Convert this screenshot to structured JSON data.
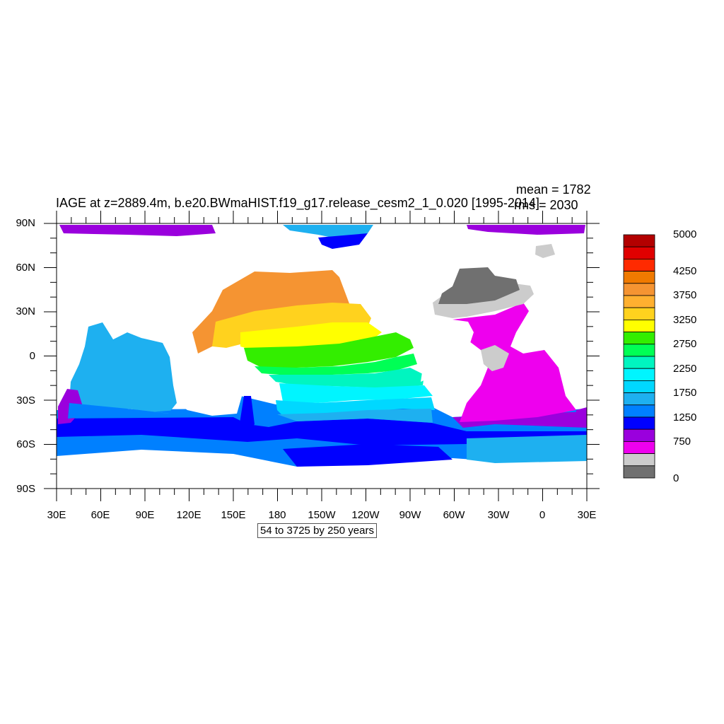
{
  "title": "IAGE at z=2889.4m, b.e20.BWmaHIST.f19_g17.release_cesm2_1_0.020 [1995-2014]",
  "stats": {
    "mean": "mean = 1782",
    "rms": "rms = 2030"
  },
  "lat_ticks": [
    "90N",
    "60N",
    "30N",
    "0",
    "30S",
    "60S",
    "90S"
  ],
  "lon_ticks": [
    "30E",
    "60E",
    "90E",
    "120E",
    "150E",
    "180",
    "150W",
    "120W",
    "90W",
    "60W",
    "30W",
    "0",
    "30E"
  ],
  "contour_info": "54 to 3725 by 250 years",
  "colorbar": {
    "labels": [
      "5000",
      "4250",
      "3750",
      "3250",
      "2750",
      "2250",
      "1750",
      "1250",
      "750",
      "0"
    ],
    "colors": [
      "#b30000",
      "#e00000",
      "#ff2a00",
      "#f07a00",
      "#f59432",
      "#ffb030",
      "#ffd21e",
      "#ffff00",
      "#33ee00",
      "#00ff55",
      "#00f5c0",
      "#00f5ff",
      "#00d8ff",
      "#1eb0f0",
      "#0080ff",
      "#0000ff",
      "#9a00dd",
      "#ee00ee",
      "#cccccc",
      "#707070"
    ]
  },
  "colors": {
    "land": "#ffffff",
    "frame": "#000000"
  }
}
